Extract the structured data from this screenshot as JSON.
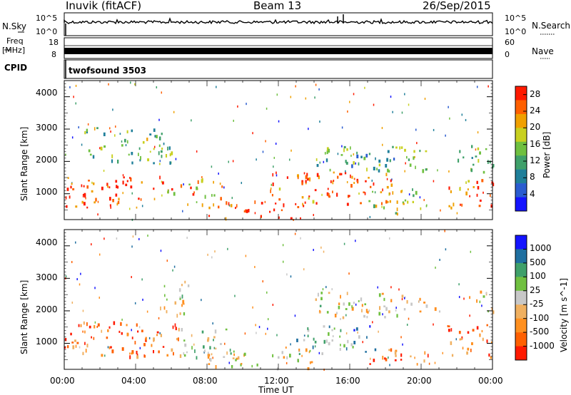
{
  "header": {
    "site": "Inuvik (fitACF)",
    "beam": "Beam 13",
    "date": "26/Sep/2015"
  },
  "strip_labels": {
    "nsky": "N.Sky",
    "nsky_top": "10^5",
    "nsky_bot": "10^0",
    "nsearch": "N.Search",
    "nsearch_top": "10^5",
    "nsearch_bot": "10^0",
    "freq_line1": "Freq",
    "freq_line2": "[MHz]",
    "freq_top": "18",
    "freq_bot": "8",
    "nave": "Nave",
    "nave_top": "60",
    "nave_bot": "0",
    "cpid": "CPID",
    "cpid_value": "twofsound 3503"
  },
  "colors": {
    "power": [
      "#1414ff",
      "#2a5cd0",
      "#1f7f9a",
      "#3fa06a",
      "#6fc040",
      "#c8d020",
      "#f0a000",
      "#ff6000",
      "#ff1a00"
    ],
    "velocity": [
      "#ff1a00",
      "#ff6000",
      "#ff9020",
      "#f0b060",
      "#c8c8c8",
      "#70c040",
      "#3fa06a",
      "#1f6fa0",
      "#1414ff"
    ]
  },
  "chart_data": [
    {
      "type": "heatmap",
      "panel": "power",
      "ylabel": "Slant Range [km]",
      "yticks": [
        "1000",
        "2000",
        "3000",
        "4000"
      ],
      "ylim": [
        200,
        4500
      ],
      "xlim": [
        0,
        24
      ],
      "colorbar": {
        "label": "Power [dB]",
        "ticks": [
          "4",
          "8",
          "12",
          "16",
          "20",
          "24",
          "28"
        ],
        "range": [
          0,
          30
        ]
      },
      "echo_bands": [
        {
          "t0": 0.0,
          "t1": 5.5,
          "r0": 600,
          "r1": 1600,
          "level": 0.9
        },
        {
          "t0": 5.5,
          "t1": 9.0,
          "r0": 700,
          "r1": 1500,
          "level": 0.7
        },
        {
          "t0": 8.0,
          "t1": 13.5,
          "r0": 250,
          "r1": 800,
          "level": 0.95
        },
        {
          "t0": 11.5,
          "t1": 18.5,
          "r0": 700,
          "r1": 1700,
          "level": 0.85
        },
        {
          "t0": 17.0,
          "t1": 20.0,
          "r0": 400,
          "r1": 1200,
          "level": 0.6
        },
        {
          "t0": 21.5,
          "t1": 24.0,
          "r0": 600,
          "r1": 1600,
          "level": 0.8
        },
        {
          "t0": 1.0,
          "t1": 6.0,
          "r0": 1900,
          "r1": 3100,
          "level": 0.45
        },
        {
          "t0": 14.0,
          "t1": 20.5,
          "r0": 1700,
          "r1": 2500,
          "level": 0.4
        },
        {
          "t0": 22.0,
          "t1": 24.0,
          "r0": 1700,
          "r1": 2600,
          "level": 0.45
        }
      ]
    },
    {
      "type": "heatmap",
      "panel": "velocity",
      "ylabel": "Slant Range [km]",
      "yticks": [
        "1000",
        "2000",
        "3000",
        "4000"
      ],
      "ylim": [
        200,
        4500
      ],
      "xlim": [
        0,
        24
      ],
      "xlabel": "Time UT",
      "xticks": [
        "00:00",
        "04:00",
        "08:00",
        "12:00",
        "16:00",
        "20:00",
        "00:00"
      ],
      "colorbar": {
        "label": "Velocity [m s^-1]",
        "ticks": [
          "1000",
          "500",
          "100",
          "25",
          "-25",
          "-100",
          "-500",
          "-1000"
        ],
        "range": [
          -1000,
          1000
        ]
      },
      "echo_bands": [
        {
          "t0": 0.0,
          "t1": 6.5,
          "r0": 600,
          "r1": 1700,
          "level": 0.15
        },
        {
          "t0": 6.0,
          "t1": 9.5,
          "r0": 600,
          "r1": 1500,
          "level": 0.55
        },
        {
          "t0": 8.0,
          "t1": 14.0,
          "r0": 250,
          "r1": 900,
          "level": 0.45
        },
        {
          "t0": 13.0,
          "t1": 17.5,
          "r0": 700,
          "r1": 1600,
          "level": 0.7
        },
        {
          "t0": 17.0,
          "t1": 20.5,
          "r0": 350,
          "r1": 900,
          "level": 0.2
        },
        {
          "t0": 21.5,
          "t1": 24.0,
          "r0": 600,
          "r1": 1600,
          "level": 0.18
        },
        {
          "t0": 5.0,
          "t1": 7.0,
          "r0": 1900,
          "r1": 3000,
          "level": 0.45
        },
        {
          "t0": 14.0,
          "t1": 21.0,
          "r0": 1800,
          "r1": 2600,
          "level": 0.45
        },
        {
          "t0": 22.5,
          "t1": 24.0,
          "r0": 2000,
          "r1": 2700,
          "level": 0.45
        }
      ]
    }
  ]
}
